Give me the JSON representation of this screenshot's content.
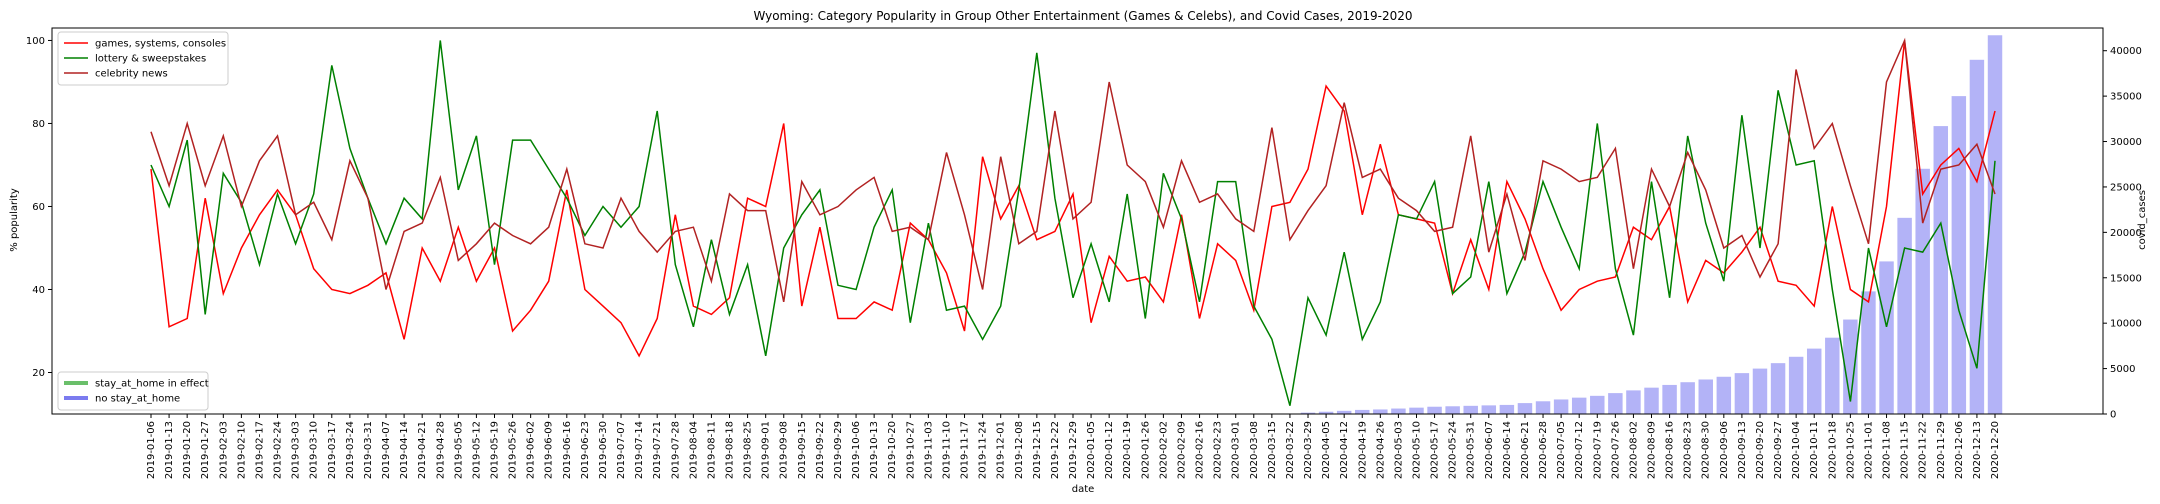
{
  "chart_data": {
    "type": "line",
    "title": "Wyoming: Category Popularity in Group Other Entertainment (Games & Celebs), and Covid Cases, 2019-2020",
    "xlabel": "date",
    "ylabel": "% popularity",
    "y2label": "covid_cases",
    "ylim": [
      10,
      103
    ],
    "y2lim": [
      0,
      42500
    ],
    "yticks": [
      20,
      40,
      60,
      80,
      100
    ],
    "y2ticks": [
      0,
      5000,
      10000,
      15000,
      20000,
      25000,
      30000,
      35000,
      40000
    ],
    "grid": false,
    "legend_lines_position": "top-left",
    "legend_shading_position": "bottom-left",
    "dates": [
      "2019-01-06",
      "2019-01-13",
      "2019-01-20",
      "2019-01-27",
      "2019-02-03",
      "2019-02-10",
      "2019-02-17",
      "2019-02-24",
      "2019-03-03",
      "2019-03-10",
      "2019-03-17",
      "2019-03-24",
      "2019-03-31",
      "2019-04-07",
      "2019-04-14",
      "2019-04-21",
      "2019-04-28",
      "2019-05-05",
      "2019-05-12",
      "2019-05-19",
      "2019-05-26",
      "2019-06-02",
      "2019-06-09",
      "2019-06-16",
      "2019-06-23",
      "2019-06-30",
      "2019-07-07",
      "2019-07-14",
      "2019-07-21",
      "2019-07-28",
      "2019-08-04",
      "2019-08-11",
      "2019-08-18",
      "2019-08-25",
      "2019-09-01",
      "2019-09-08",
      "2019-09-15",
      "2019-09-22",
      "2019-09-29",
      "2019-10-06",
      "2019-10-13",
      "2019-10-20",
      "2019-10-27",
      "2019-11-03",
      "2019-11-10",
      "2019-11-17",
      "2019-11-24",
      "2019-12-01",
      "2019-12-08",
      "2019-12-15",
      "2019-12-22",
      "2019-12-29",
      "2020-01-05",
      "2020-01-12",
      "2020-01-19",
      "2020-01-26",
      "2020-02-02",
      "2020-02-09",
      "2020-02-16",
      "2020-02-23",
      "2020-03-01",
      "2020-03-08",
      "2020-03-15",
      "2020-03-22",
      "2020-03-29",
      "2020-04-05",
      "2020-04-12",
      "2020-04-19",
      "2020-04-26",
      "2020-05-03",
      "2020-05-10",
      "2020-05-17",
      "2020-05-24",
      "2020-05-31",
      "2020-06-07",
      "2020-06-14",
      "2020-06-21",
      "2020-06-28",
      "2020-07-05",
      "2020-07-12",
      "2020-07-19",
      "2020-07-26",
      "2020-08-02",
      "2020-08-09",
      "2020-08-16",
      "2020-08-23",
      "2020-08-30",
      "2020-09-06",
      "2020-09-13",
      "2020-09-20",
      "2020-09-27",
      "2020-10-04",
      "2020-10-11",
      "2020-10-18",
      "2020-10-25",
      "2020-11-01",
      "2020-11-08",
      "2020-11-15",
      "2020-11-22",
      "2020-11-29",
      "2020-12-06",
      "2020-12-13",
      "2020-12-20"
    ],
    "series": [
      {
        "name": "games, systems, consoles",
        "color": "#ff0000",
        "values": [
          69,
          31,
          33,
          62,
          39,
          50,
          58,
          64,
          58,
          45,
          40,
          39,
          41,
          44,
          28,
          50,
          42,
          55,
          42,
          50,
          30,
          35,
          42,
          64,
          40,
          36,
          32,
          24,
          33,
          58,
          36,
          34,
          38,
          62,
          60,
          80,
          36,
          55,
          33,
          33,
          37,
          35,
          56,
          52,
          44,
          30,
          72,
          57,
          65,
          52,
          54,
          63,
          32,
          48,
          42,
          43,
          37,
          58,
          33,
          51,
          47,
          35,
          60,
          61,
          69,
          89,
          83,
          58,
          75,
          58,
          57,
          56,
          39,
          52,
          40,
          66,
          57,
          45,
          35,
          40,
          42,
          43,
          55,
          52,
          60,
          37,
          47,
          44,
          49,
          55,
          42,
          41,
          36,
          60,
          40,
          37,
          60,
          100,
          63,
          70,
          74,
          66,
          83
        ]
      },
      {
        "name": "lottery & sweepstakes",
        "color": "#008000",
        "values": [
          70,
          60,
          76,
          34,
          68,
          61,
          46,
          63,
          51,
          63,
          94,
          74,
          62,
          51,
          62,
          57,
          100,
          64,
          77,
          46,
          76,
          76,
          69,
          62,
          53,
          60,
          55,
          60,
          83,
          46,
          31,
          52,
          34,
          46,
          24,
          50,
          58,
          64,
          41,
          40,
          55,
          64,
          32,
          56,
          35,
          36,
          28,
          36,
          64,
          97,
          62,
          38,
          51,
          37,
          63,
          33,
          68,
          57,
          37,
          66,
          66,
          36,
          28,
          12,
          38,
          29,
          49,
          28,
          37,
          58,
          57,
          66,
          39,
          43,
          66,
          39,
          49,
          66,
          55,
          45,
          80,
          45,
          29,
          66,
          38,
          77,
          56,
          42,
          82,
          50,
          88,
          70,
          71,
          40,
          13,
          50,
          31,
          50,
          49,
          56,
          35,
          21,
          71
        ]
      },
      {
        "name": "celebrity news",
        "color": "#b22222",
        "values": [
          78,
          65,
          80,
          65,
          77,
          60,
          71,
          77,
          58,
          61,
          52,
          71,
          62,
          40,
          54,
          56,
          67,
          47,
          51,
          56,
          53,
          51,
          55,
          69,
          51,
          50,
          62,
          54,
          49,
          54,
          55,
          42,
          63,
          59,
          59,
          37,
          66,
          58,
          60,
          64,
          67,
          54,
          55,
          52,
          73,
          58,
          40,
          72,
          51,
          54,
          83,
          57,
          61,
          90,
          70,
          66,
          55,
          71,
          61,
          63,
          57,
          54,
          79,
          52,
          59,
          65,
          85,
          67,
          69,
          62,
          59,
          54,
          55,
          77,
          49,
          63,
          47,
          71,
          69,
          66,
          67,
          74,
          45,
          69,
          60,
          73,
          64,
          50,
          53,
          43,
          51,
          93,
          74,
          80,
          65,
          51,
          90,
          100,
          56,
          69,
          70,
          75,
          63
        ]
      }
    ],
    "covid_cases_bar_color": "#b3b3f7",
    "covid_cases": [
      0,
      0,
      0,
      0,
      0,
      0,
      0,
      0,
      0,
      0,
      0,
      0,
      0,
      0,
      0,
      0,
      0,
      0,
      0,
      0,
      0,
      0,
      0,
      0,
      0,
      0,
      0,
      0,
      0,
      0,
      0,
      0,
      0,
      0,
      0,
      0,
      0,
      0,
      0,
      0,
      0,
      0,
      0,
      0,
      0,
      0,
      0,
      0,
      0,
      0,
      0,
      0,
      0,
      0,
      0,
      0,
      0,
      0,
      0,
      0,
      0,
      0,
      0,
      50,
      150,
      250,
      350,
      450,
      500,
      600,
      700,
      800,
      850,
      900,
      950,
      1000,
      1200,
      1400,
      1600,
      1800,
      2000,
      2300,
      2600,
      2900,
      3200,
      3500,
      3800,
      4100,
      4500,
      5000,
      5600,
      6300,
      7200,
      8400,
      10400,
      13500,
      16800,
      21600,
      27000,
      31700,
      35000,
      39000,
      41700
    ],
    "stay_at_home": [
      false,
      false,
      false,
      false,
      false,
      false,
      false,
      false,
      false,
      false,
      false,
      false,
      false,
      false,
      false,
      false,
      false,
      false,
      false,
      false,
      false,
      false,
      false,
      false,
      false,
      false,
      false,
      false,
      false,
      false,
      false,
      false,
      false,
      false,
      false,
      false,
      false,
      false,
      false,
      false,
      false,
      false,
      false,
      false,
      false,
      false,
      false,
      false,
      false,
      false,
      false,
      false,
      false,
      false,
      false,
      false,
      false,
      false,
      false,
      false,
      false,
      false,
      false,
      false,
      false,
      false,
      false,
      false,
      false,
      false,
      false,
      false,
      false,
      false,
      false,
      false,
      false,
      false,
      false,
      false,
      false,
      false,
      false,
      false,
      false,
      false,
      false,
      false,
      false,
      false,
      false,
      false,
      false,
      false,
      false,
      false,
      false,
      false,
      false,
      false,
      false,
      false,
      false
    ],
    "legend_lines": [
      {
        "label": "games, systems, consoles",
        "color": "#ff0000"
      },
      {
        "label": "lottery & sweepstakes",
        "color": "#008000"
      },
      {
        "label": "celebrity news",
        "color": "#b22222"
      }
    ],
    "legend_shading": [
      {
        "label": "stay_at_home in effect",
        "color": "#6abf6a"
      },
      {
        "label": "no stay_at_home",
        "color": "#7b7bef"
      }
    ]
  }
}
